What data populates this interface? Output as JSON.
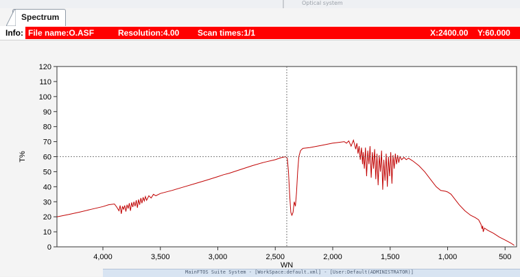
{
  "window": {
    "faint_title": "Optical system"
  },
  "tab": {
    "label": "Spectrum"
  },
  "info": {
    "label": "Info:",
    "file_name": "File name:O.ASF",
    "resolution": "Resolution:4.00",
    "scan_times": "Scan times:1/1",
    "x_readout": "X:2400.00",
    "y_readout": "Y:60.000"
  },
  "status_bar": {
    "text": "MainFTOS Suite System - [WorkSpace:default.xml] - [User:Default(ADMINISTRATOR)]"
  },
  "colors": {
    "info_background": "#ff0000",
    "trace": "#c00000",
    "crosshair": "#555555"
  },
  "chart_data": {
    "type": "line",
    "xlabel": "WN",
    "ylabel": "T%",
    "xlim": [
      4400,
      400
    ],
    "ylim": [
      0,
      120
    ],
    "x_reversed": true,
    "x_ticks": [
      4000,
      3500,
      3000,
      2500,
      2000,
      1500,
      1000,
      500
    ],
    "x_tick_labels": [
      "4,000",
      "3,500",
      "3,000",
      "2,500",
      "2,000",
      "1,500",
      "1,000",
      "500"
    ],
    "y_ticks": [
      0,
      10,
      20,
      30,
      40,
      50,
      60,
      70,
      80,
      90,
      100,
      110,
      120
    ],
    "y_tick_labels": [
      "0",
      "10",
      "20",
      "30",
      "40",
      "50",
      "60",
      "70",
      "80",
      "90",
      "100",
      "110",
      "120"
    ],
    "crosshair": {
      "x": 2400,
      "y": 60
    },
    "grid": false,
    "series": [
      {
        "color": "#c00000",
        "points": [
          [
            4400,
            20
          ],
          [
            4300,
            21.5
          ],
          [
            4200,
            23.2
          ],
          [
            4100,
            25
          ],
          [
            4000,
            26.8
          ],
          [
            3950,
            28
          ],
          [
            3900,
            28.5
          ],
          [
            3880,
            26.5
          ],
          [
            3860,
            24
          ],
          [
            3850,
            27.5
          ],
          [
            3840,
            22
          ],
          [
            3830,
            27
          ],
          [
            3820,
            25
          ],
          [
            3810,
            27.5
          ],
          [
            3800,
            23.5
          ],
          [
            3790,
            28
          ],
          [
            3780,
            25.5
          ],
          [
            3770,
            29
          ],
          [
            3760,
            24
          ],
          [
            3750,
            29.5
          ],
          [
            3740,
            26.5
          ],
          [
            3730,
            30
          ],
          [
            3720,
            27
          ],
          [
            3710,
            31
          ],
          [
            3700,
            26
          ],
          [
            3690,
            31.5
          ],
          [
            3680,
            28
          ],
          [
            3670,
            32.5
          ],
          [
            3660,
            29
          ],
          [
            3650,
            33
          ],
          [
            3640,
            30.5
          ],
          [
            3630,
            33.5
          ],
          [
            3620,
            31
          ],
          [
            3600,
            34
          ],
          [
            3580,
            32.5
          ],
          [
            3560,
            35
          ],
          [
            3540,
            34
          ],
          [
            3500,
            35.5
          ],
          [
            3400,
            37.5
          ],
          [
            3300,
            39.8
          ],
          [
            3200,
            42
          ],
          [
            3100,
            44.3
          ],
          [
            3000,
            46.7
          ],
          [
            2950,
            48
          ],
          [
            2900,
            49
          ],
          [
            2800,
            51.5
          ],
          [
            2700,
            54
          ],
          [
            2600,
            56.2
          ],
          [
            2500,
            58
          ],
          [
            2450,
            59.3
          ],
          [
            2410,
            60
          ],
          [
            2395,
            59
          ],
          [
            2385,
            50
          ],
          [
            2375,
            35
          ],
          [
            2365,
            23
          ],
          [
            2355,
            21
          ],
          [
            2345,
            23
          ],
          [
            2335,
            30
          ],
          [
            2325,
            27
          ],
          [
            2315,
            36
          ],
          [
            2305,
            50
          ],
          [
            2295,
            60
          ],
          [
            2280,
            64
          ],
          [
            2260,
            65.5
          ],
          [
            2200,
            66
          ],
          [
            2100,
            67.5
          ],
          [
            2000,
            69
          ],
          [
            1950,
            69.5
          ],
          [
            1900,
            70
          ],
          [
            1880,
            69
          ],
          [
            1860,
            70.5
          ],
          [
            1840,
            67
          ],
          [
            1820,
            71
          ],
          [
            1800,
            65
          ],
          [
            1790,
            69
          ],
          [
            1780,
            62
          ],
          [
            1770,
            67
          ],
          [
            1760,
            58
          ],
          [
            1750,
            66
          ],
          [
            1740,
            55
          ],
          [
            1735,
            63
          ],
          [
            1725,
            52
          ],
          [
            1715,
            66
          ],
          [
            1705,
            47
          ],
          [
            1695,
            64
          ],
          [
            1685,
            55
          ],
          [
            1675,
            67
          ],
          [
            1665,
            46
          ],
          [
            1655,
            63
          ],
          [
            1645,
            52
          ],
          [
            1635,
            65
          ],
          [
            1625,
            45
          ],
          [
            1615,
            62
          ],
          [
            1605,
            41
          ],
          [
            1595,
            61
          ],
          [
            1585,
            50
          ],
          [
            1575,
            64
          ],
          [
            1565,
            38
          ],
          [
            1555,
            58
          ],
          [
            1545,
            44
          ],
          [
            1535,
            62
          ],
          [
            1525,
            40
          ],
          [
            1515,
            60
          ],
          [
            1505,
            47
          ],
          [
            1495,
            63
          ],
          [
            1485,
            42
          ],
          [
            1475,
            61
          ],
          [
            1465,
            52
          ],
          [
            1455,
            62
          ],
          [
            1445,
            55
          ],
          [
            1435,
            61
          ],
          [
            1425,
            56
          ],
          [
            1415,
            60
          ],
          [
            1400,
            58
          ],
          [
            1380,
            59.5
          ],
          [
            1360,
            58
          ],
          [
            1340,
            59
          ],
          [
            1320,
            58
          ],
          [
            1300,
            57
          ],
          [
            1250,
            54
          ],
          [
            1200,
            50
          ],
          [
            1150,
            45
          ],
          [
            1100,
            40
          ],
          [
            1060,
            37.5
          ],
          [
            1020,
            37
          ],
          [
            1000,
            36.5
          ],
          [
            970,
            35
          ],
          [
            950,
            33
          ],
          [
            900,
            28
          ],
          [
            850,
            24
          ],
          [
            800,
            21
          ],
          [
            760,
            19.5
          ],
          [
            730,
            18
          ],
          [
            710,
            15
          ],
          [
            700,
            12
          ],
          [
            695,
            14
          ],
          [
            690,
            10
          ],
          [
            680,
            12.5
          ],
          [
            650,
            11
          ],
          [
            600,
            9
          ],
          [
            550,
            6.5
          ],
          [
            500,
            4.5
          ],
          [
            450,
            2.5
          ],
          [
            420,
            1
          ]
        ]
      }
    ]
  }
}
